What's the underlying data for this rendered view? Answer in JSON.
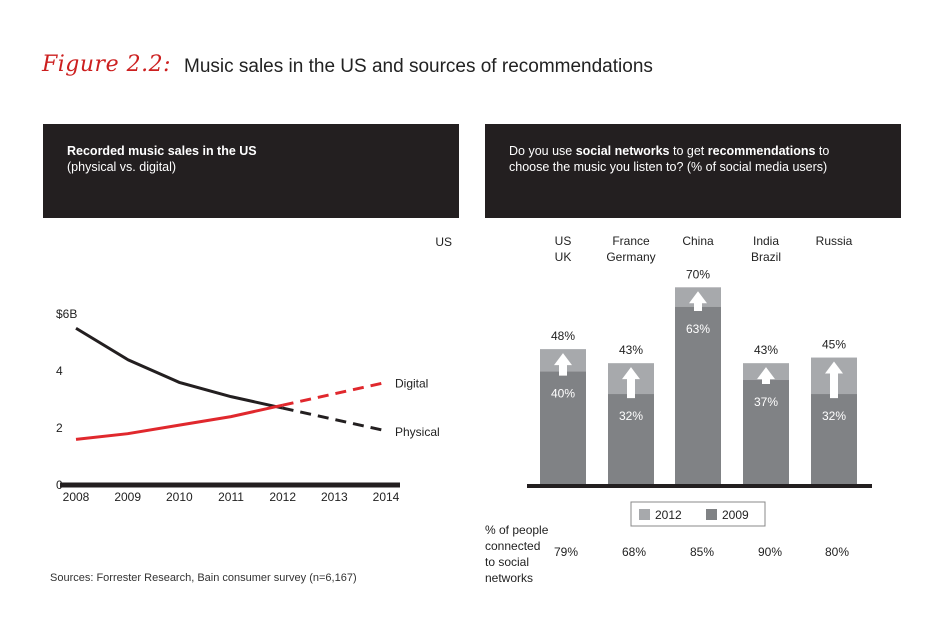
{
  "figure": {
    "label": "Figure 2.2:",
    "title": "Music sales in the US and sources of recommendations"
  },
  "left_panel": {
    "title": "Recorded music sales in the US",
    "subtitle": "(physical vs. digital)",
    "region_label": "US"
  },
  "right_panel": {
    "title_pre": "Do you use ",
    "title_bold1": "social networks",
    "title_mid": " to get ",
    "title_bold2": "recommendations",
    "title_post": " to",
    "title_line2": "choose the music you listen to? (% of social media users)",
    "connected_label": [
      "% of people",
      "connected",
      "to social",
      "networks"
    ]
  },
  "source": "Sources: Forrester Research, Bain consumer survey (n=6,167)",
  "chart_data": [
    {
      "type": "line",
      "x": [
        2008,
        2009,
        2010,
        2011,
        2012,
        2013,
        2014
      ],
      "x_tick_labels": [
        "2008",
        "2009",
        "2010",
        "2011",
        "2012",
        "2013",
        "2014"
      ],
      "y_tick_labels": [
        "0",
        "2",
        "4",
        "$6B"
      ],
      "y_ticks": [
        0,
        2,
        4,
        6
      ],
      "ylim": [
        0,
        6
      ],
      "forecast_from": 2012,
      "series": [
        {
          "name": "Physical",
          "values": [
            5.5,
            4.4,
            3.6,
            3.1,
            2.7,
            2.3,
            1.9
          ],
          "color": "#231f20"
        },
        {
          "name": "Digital",
          "values": [
            1.6,
            1.8,
            2.1,
            2.4,
            2.8,
            3.2,
            3.6
          ],
          "color": "#e0282d"
        }
      ]
    },
    {
      "type": "bar",
      "categories": [
        [
          "US",
          "UK"
        ],
        [
          "France",
          "Germany"
        ],
        [
          "China"
        ],
        [
          "India",
          "Brazil"
        ],
        [
          "Russia"
        ]
      ],
      "series": [
        {
          "name": "2012",
          "values": [
            48,
            43,
            70,
            43,
            45
          ],
          "labels": [
            "48%",
            "43%",
            "70%",
            "43%",
            "45%"
          ],
          "color": "#a7a9ac"
        },
        {
          "name": "2009",
          "values": [
            40,
            32,
            63,
            37,
            32
          ],
          "labels": [
            "40%",
            "32%",
            "63%",
            "37%",
            "32%"
          ],
          "color": "#808285"
        }
      ],
      "connected_to_social_networks": [
        "79%",
        "68%",
        "85%",
        "90%",
        "80%"
      ],
      "legend": [
        "2012",
        "2009"
      ],
      "legend_position": "bottom"
    }
  ]
}
